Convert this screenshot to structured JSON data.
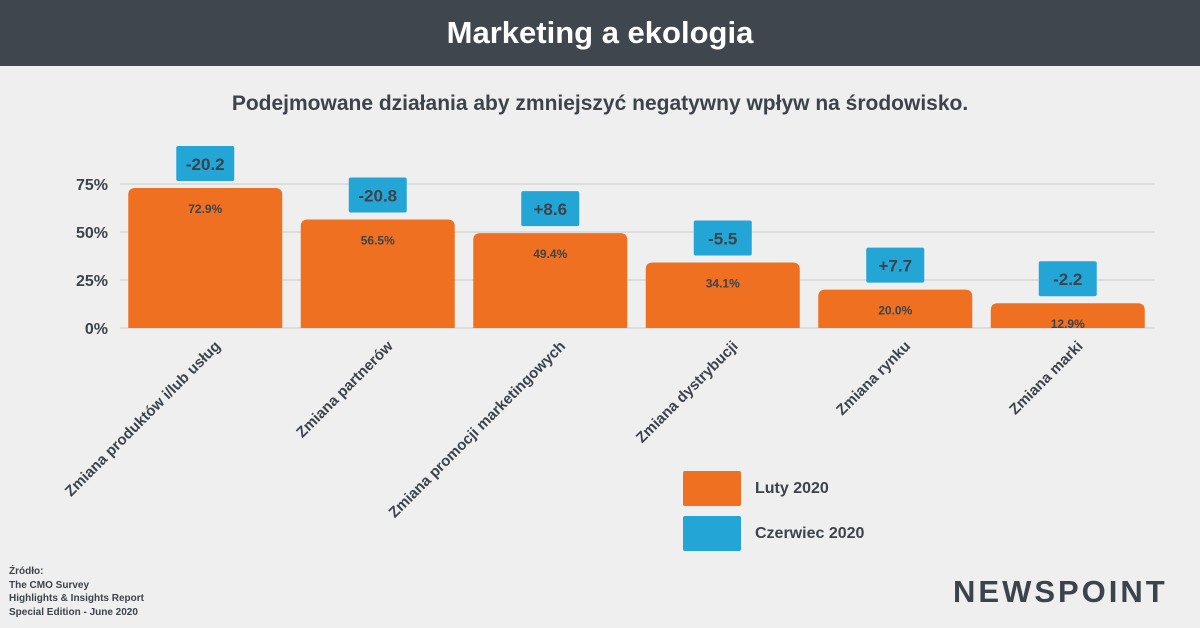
{
  "header": {
    "title": "Marketing a ekologia"
  },
  "colors": {
    "header_bg": "#3f464e",
    "luty": "#f07021",
    "czerwiec": "#23a5d6",
    "text": "#3d434b"
  },
  "chart_data": {
    "type": "bar",
    "title": "Podejmowane działania aby zmniejszyć negatywny wpływ na środowisko.",
    "categories": [
      "Zmiana produktów i/lub usług",
      "Zmiana partnerów",
      "Zmiana promocji marketingowych",
      "Zmiana dystrybucji",
      "Zmiana rynku",
      "Zmiana marki"
    ],
    "series": [
      {
        "name": "Luty 2020",
        "values": [
          72.9,
          56.5,
          49.4,
          34.1,
          20.0,
          12.9
        ],
        "labels": [
          "72.9%",
          "56.5%",
          "49.4%",
          "34.1%",
          "20.0%",
          "12.9%"
        ]
      }
    ],
    "changes": {
      "name": "Czerwiec 2020",
      "values": [
        -20.2,
        -20.8,
        8.6,
        -5.5,
        7.7,
        -2.2
      ],
      "labels": [
        "-20.2",
        "-20.8",
        "+8.6",
        "-5.5",
        "+7.7",
        "-2.2"
      ]
    },
    "yticks": [
      "0%",
      "25%",
      "50%",
      "75%"
    ],
    "ylim": [
      0,
      75
    ],
    "grid": true,
    "legend_position": "bottom-right"
  },
  "legend": [
    {
      "label": "Luty 2020",
      "color": "#f07021"
    },
    {
      "label": "Czerwiec 2020",
      "color": "#23a5d6"
    }
  ],
  "source": {
    "heading": "Źródło:",
    "lines": [
      "The CMO Survey",
      "Highlights & Insights Report",
      "Special Edition - June 2020"
    ]
  },
  "logo": {
    "text": "NEWSPOINT"
  }
}
